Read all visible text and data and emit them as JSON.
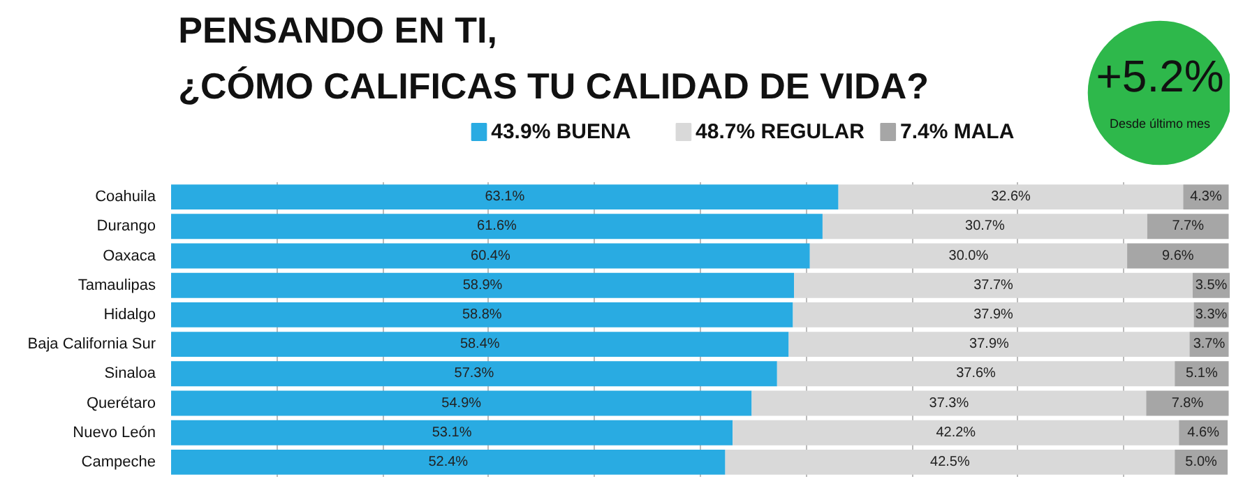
{
  "chart_data": {
    "type": "bar",
    "orientation": "horizontal",
    "stacked": true,
    "title": "PENSANDO EN TI,",
    "subtitle": "¿CÓMO CALIFICAS TU CALIDAD DE VIDA?",
    "annotations": [
      "+5.2%",
      "Desde último mes"
    ],
    "categories": [
      "Coahuila",
      "Durango",
      "Oaxaca",
      "Tamaulipas",
      "Hidalgo",
      "Baja California Sur",
      "Sinaloa",
      "Querétaro",
      "Nuevo León",
      "Campeche"
    ],
    "series": [
      {
        "name": "43.9% BUENA",
        "color": "#29abe2",
        "values": [
          63.1,
          61.6,
          60.4,
          58.9,
          58.8,
          58.4,
          57.3,
          54.9,
          53.1,
          52.4
        ],
        "value_labels": [
          "63.1%",
          "61.6%",
          "60.4%",
          "58.9%",
          "58.8%",
          "58.4%",
          "57.3%",
          "54.9%",
          "53.1%",
          "52.4%"
        ]
      },
      {
        "name": "48.7% REGULAR",
        "color": "#d9d9d9",
        "values": [
          32.6,
          30.7,
          30.0,
          37.7,
          37.9,
          37.9,
          37.6,
          37.3,
          42.2,
          42.5
        ],
        "value_labels": [
          "32.6%",
          "30.7%",
          "30.0%",
          "37.7%",
          "37.9%",
          "37.9%",
          "37.6%",
          "37.3%",
          "42.2%",
          "42.5%"
        ]
      },
      {
        "name": "7.4% MALA",
        "color": "#a6a6a6",
        "values": [
          4.3,
          7.7,
          9.6,
          3.5,
          3.3,
          3.7,
          5.1,
          7.8,
          4.6,
          5.0
        ],
        "value_labels": [
          "4.3%",
          "7.7%",
          "9.6%",
          "3.5%",
          "3.3%",
          "3.7%",
          "5.1%",
          "7.8%",
          "4.6%",
          "5.0%"
        ]
      }
    ],
    "tick_labels": "y",
    "grid": "x",
    "legend": "top"
  }
}
